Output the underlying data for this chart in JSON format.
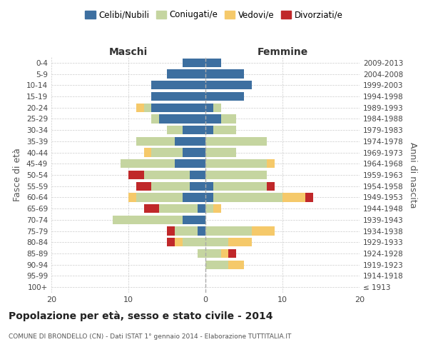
{
  "age_groups": [
    "100+",
    "95-99",
    "90-94",
    "85-89",
    "80-84",
    "75-79",
    "70-74",
    "65-69",
    "60-64",
    "55-59",
    "50-54",
    "45-49",
    "40-44",
    "35-39",
    "30-34",
    "25-29",
    "20-24",
    "15-19",
    "10-14",
    "5-9",
    "0-4"
  ],
  "birth_years": [
    "≤ 1913",
    "1914-1918",
    "1919-1923",
    "1924-1928",
    "1929-1933",
    "1934-1938",
    "1939-1943",
    "1944-1948",
    "1949-1953",
    "1954-1958",
    "1959-1963",
    "1964-1968",
    "1969-1973",
    "1974-1978",
    "1979-1983",
    "1984-1988",
    "1989-1993",
    "1994-1998",
    "1999-2003",
    "2004-2008",
    "2009-2013"
  ],
  "maschi": {
    "celibi": [
      0,
      0,
      0,
      0,
      0,
      1,
      3,
      1,
      3,
      2,
      2,
      4,
      3,
      4,
      3,
      6,
      7,
      7,
      7,
      5,
      3
    ],
    "coniugati": [
      0,
      0,
      0,
      1,
      3,
      3,
      9,
      5,
      6,
      5,
      6,
      7,
      4,
      5,
      2,
      1,
      1,
      0,
      0,
      0,
      0
    ],
    "vedovi": [
      0,
      0,
      0,
      0,
      1,
      0,
      0,
      0,
      1,
      0,
      0,
      0,
      1,
      0,
      0,
      0,
      1,
      0,
      0,
      0,
      0
    ],
    "divorziati": [
      0,
      0,
      0,
      0,
      1,
      1,
      0,
      2,
      0,
      2,
      2,
      0,
      0,
      0,
      0,
      0,
      0,
      0,
      0,
      0,
      0
    ]
  },
  "femmine": {
    "nubili": [
      0,
      0,
      0,
      0,
      0,
      0,
      0,
      0,
      1,
      1,
      0,
      0,
      0,
      0,
      1,
      2,
      1,
      5,
      6,
      5,
      2
    ],
    "coniugate": [
      0,
      0,
      3,
      2,
      3,
      6,
      0,
      1,
      9,
      7,
      8,
      8,
      4,
      8,
      3,
      2,
      1,
      0,
      0,
      0,
      0
    ],
    "vedove": [
      0,
      0,
      2,
      1,
      3,
      3,
      0,
      1,
      3,
      0,
      0,
      1,
      0,
      0,
      0,
      0,
      0,
      0,
      0,
      0,
      0
    ],
    "divorziate": [
      0,
      0,
      0,
      1,
      0,
      0,
      0,
      0,
      1,
      1,
      0,
      0,
      0,
      0,
      0,
      0,
      0,
      0,
      0,
      0,
      0
    ]
  },
  "colors": {
    "celibi": "#3d6fa0",
    "coniugati": "#c5d5a0",
    "vedovi": "#f5c96a",
    "divorziati": "#c0282a"
  },
  "xlim": 20,
  "title": "Popolazione per età, sesso e stato civile - 2014",
  "subtitle": "COMUNE DI BRONDELLO (CN) - Dati ISTAT 1° gennaio 2014 - Elaborazione TUTTITALIA.IT",
  "ylabel_left": "Fasce di età",
  "ylabel_right": "Anni di nascita",
  "xlabel_maschi": "Maschi",
  "xlabel_femmine": "Femmine",
  "legend_labels": [
    "Celibi/Nubili",
    "Coniugati/e",
    "Vedovi/e",
    "Divorziati/e"
  ]
}
